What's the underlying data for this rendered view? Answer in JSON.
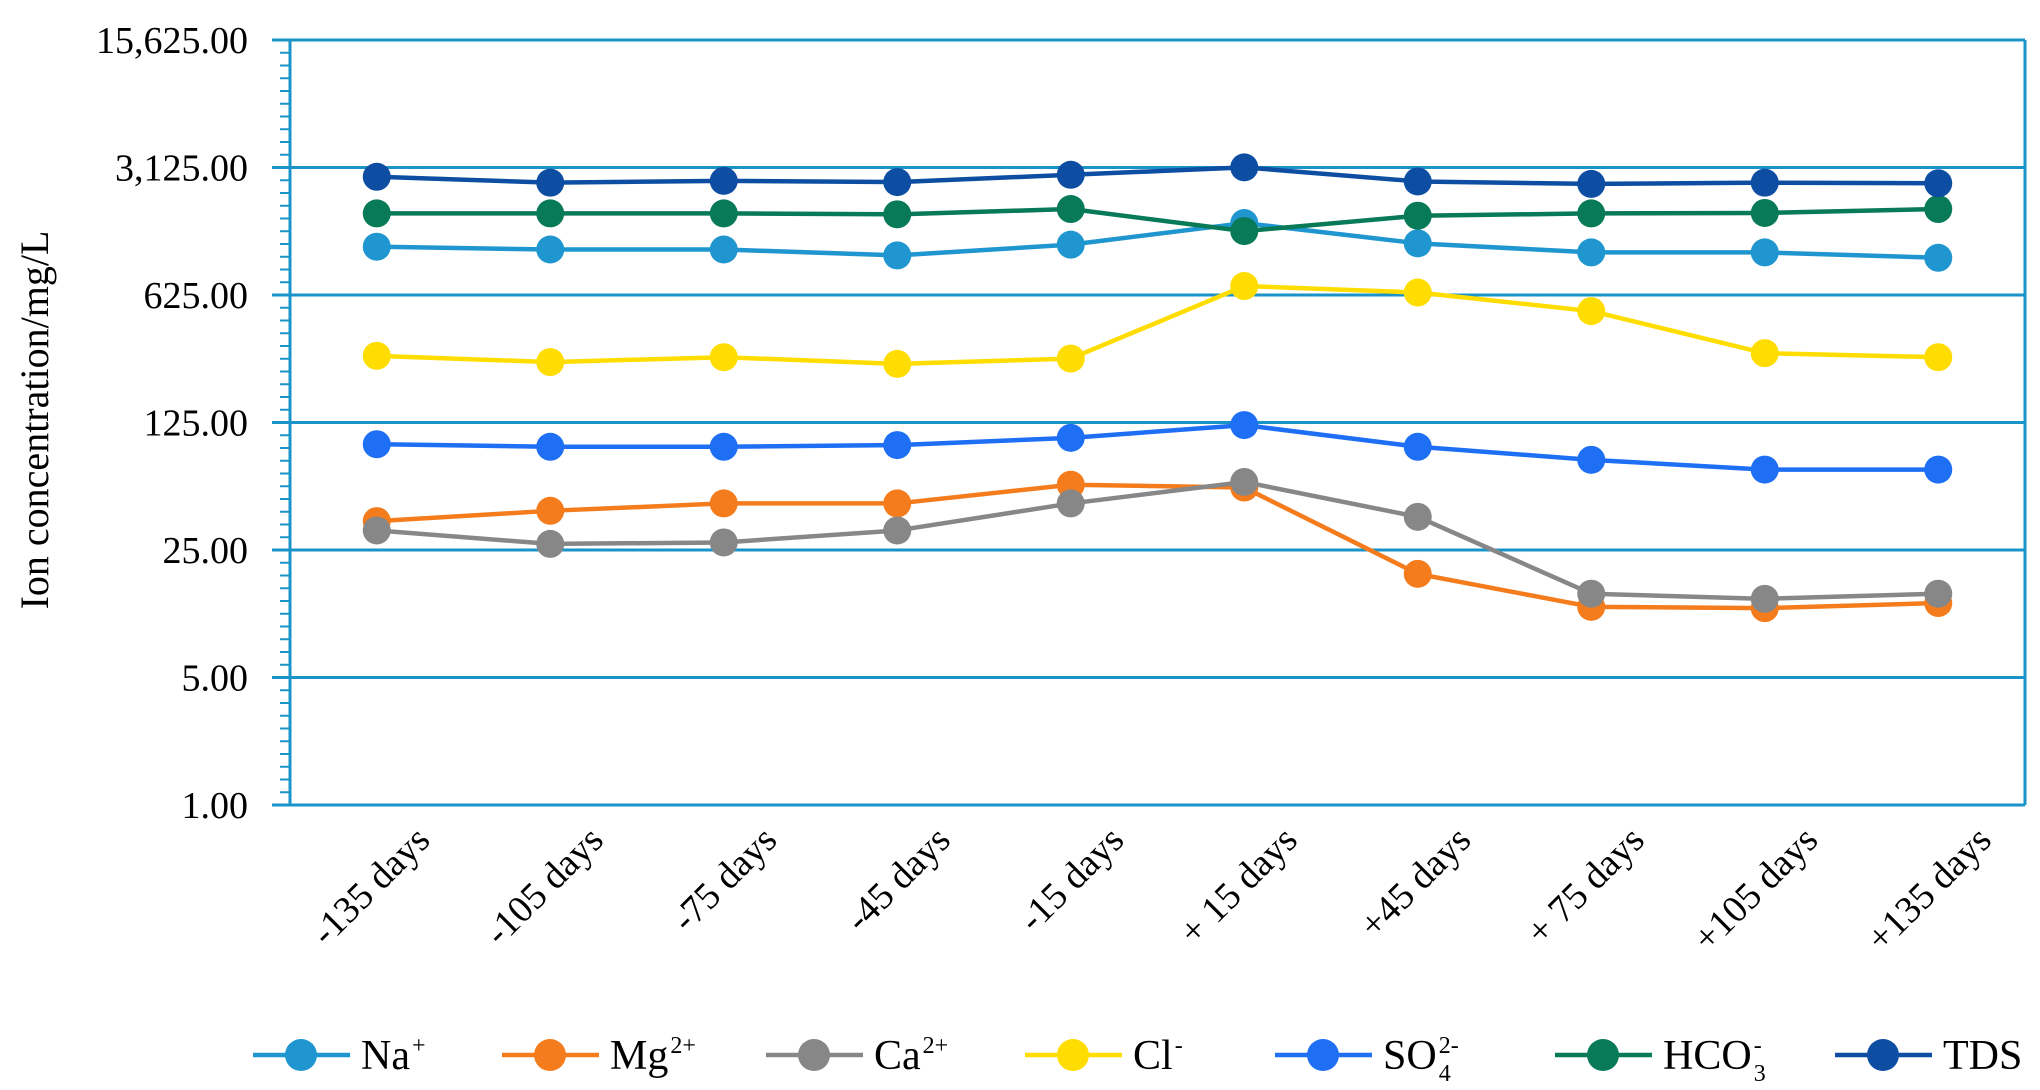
{
  "chart_data": {
    "type": "line",
    "title": "",
    "xlabel": "",
    "ylabel": "Ion concentration/mg/L",
    "y_scale": "log",
    "ylim": [
      1,
      15625
    ],
    "yticks": [
      1,
      5,
      25,
      125,
      625,
      3125,
      15625
    ],
    "ytick_labels": [
      "1.00",
      "5.00",
      "25.00",
      "125.00",
      "625.00",
      "3,125.00",
      "15,625.00"
    ],
    "grid": true,
    "legend_position": "bottom",
    "categories": [
      "-135 days",
      "-105 days",
      "-75 days",
      "-45 days",
      "-15 days",
      "+ 15 days",
      "+45 days",
      "+ 75 days",
      "+105 days",
      "+135 days"
    ],
    "series": [
      {
        "name": "Na",
        "sup": "+",
        "sub": "",
        "color": "#1f96d0",
        "values": [
          1150,
          1110,
          1110,
          1030,
          1180,
          1550,
          1200,
          1070,
          1070,
          1000
        ]
      },
      {
        "name": "Mg",
        "sup": "2+",
        "sub": "",
        "color": "#f47c1c",
        "values": [
          36,
          41,
          45,
          45,
          57,
          55,
          18.5,
          12.2,
          12,
          12.8
        ]
      },
      {
        "name": "Ca",
        "sup": "2+",
        "sub": "",
        "color": "#878787",
        "values": [
          32,
          27,
          27.5,
          32,
          45,
          59,
          38,
          14.4,
          13.5,
          14.4
        ]
      },
      {
        "name": "Cl",
        "sup": "-",
        "sub": "",
        "color": "#ffdd00",
        "values": [
          290,
          268,
          285,
          262,
          280,
          700,
          645,
          510,
          300,
          285
        ]
      },
      {
        "name": "SO",
        "sup": "2-",
        "sub": "4",
        "color": "#1f6ff5",
        "values": [
          95,
          92,
          92,
          94,
          103,
          121,
          92,
          78,
          69,
          69
        ]
      },
      {
        "name": "HCO",
        "sup": "-",
        "sub": "3",
        "color": "#087a57",
        "values": [
          1750,
          1750,
          1750,
          1730,
          1850,
          1400,
          1700,
          1750,
          1760,
          1850
        ]
      },
      {
        "name": "TDS",
        "sup": "",
        "sub": "",
        "color": "#0d4ea3",
        "values": [
          2780,
          2580,
          2640,
          2600,
          2850,
          3130,
          2620,
          2540,
          2580,
          2560
        ]
      }
    ]
  }
}
